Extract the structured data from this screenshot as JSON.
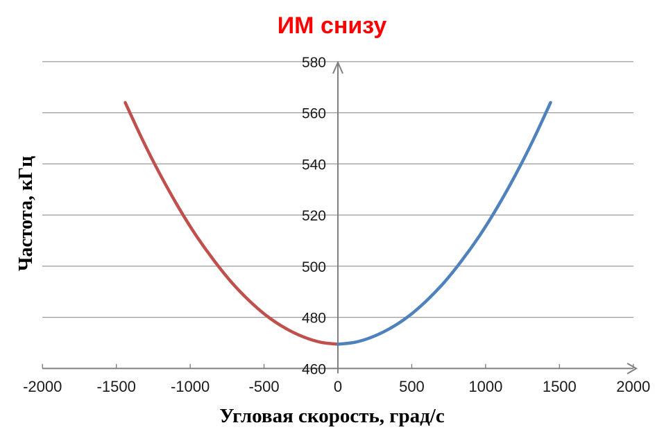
{
  "chart": {
    "title": "ИМ снизу",
    "title_color": "#FF0000",
    "xlabel": "Угловая скорость, град/с",
    "ylabel": "Частота, кГц"
  },
  "chart_data": {
    "type": "line",
    "title": "ИМ снизу",
    "xlabel": "Угловая скорость, град/с",
    "ylabel": "Частота, кГц",
    "xlim": [
      -2000,
      2000
    ],
    "ylim": [
      460,
      580
    ],
    "xticks": [
      -2000,
      -1500,
      -1000,
      -500,
      0,
      500,
      1000,
      1500,
      2000
    ],
    "yticks": [
      460,
      480,
      500,
      520,
      540,
      560,
      580
    ],
    "grid": "horizontal-only",
    "legend_position": "none",
    "axis_color": "#808080",
    "gridline_color": "#9a9a9a",
    "tick_label_color": "#1a1a1a",
    "series": [
      {
        "name": "left-branch",
        "color": "#C0504D",
        "x": [
          -1440,
          -1320,
          -1200,
          -1080,
          -960,
          -840,
          -720,
          -600,
          -480,
          -360,
          -240,
          -120,
          0
        ],
        "y": [
          564.0,
          549.1,
          535.5,
          523.1,
          512.0,
          502.3,
          493.7,
          486.5,
          480.5,
          475.9,
          472.5,
          470.3,
          469.5
        ]
      },
      {
        "name": "right-branch",
        "color": "#4F81BD",
        "x": [
          0,
          120,
          240,
          360,
          480,
          600,
          720,
          840,
          960,
          1080,
          1200,
          1320,
          1440
        ],
        "y": [
          469.5,
          470.3,
          472.5,
          475.9,
          480.5,
          486.5,
          493.7,
          502.3,
          512.0,
          523.1,
          535.5,
          549.1,
          564.0
        ]
      }
    ]
  }
}
